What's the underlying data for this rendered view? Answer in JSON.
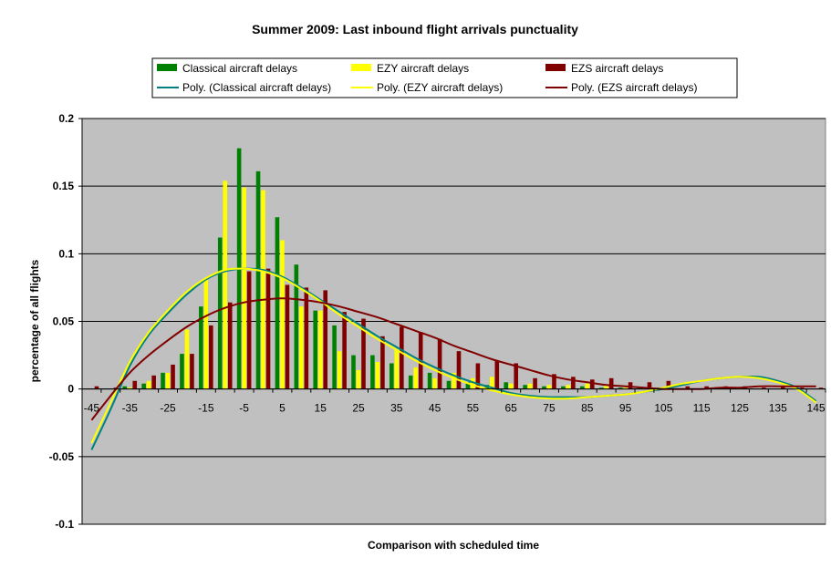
{
  "chart_data": {
    "type": "bar",
    "title": "Summer 2009: Last inbound flight arrivals punctuality",
    "xlabel": "Comparison with scheduled time",
    "ylabel": "percentage of all flights",
    "ylim": [
      -0.1,
      0.2
    ],
    "yticks": [
      "0.2",
      "0.15",
      "0.1",
      "0.05",
      "0",
      "-0.05",
      "-0.1"
    ],
    "ytick_values": [
      0.2,
      0.15,
      0.1,
      0.05,
      0,
      -0.05,
      -0.1
    ],
    "grid": true,
    "legend_position": "top",
    "plot_background": "#C0C0C0",
    "categories": [
      -45,
      -40,
      -35,
      -30,
      -25,
      -20,
      -15,
      -10,
      -5,
      0,
      5,
      10,
      15,
      20,
      25,
      30,
      35,
      40,
      45,
      50,
      55,
      60,
      65,
      70,
      75,
      80,
      85,
      90,
      95,
      100,
      105,
      110,
      115,
      120,
      125,
      130,
      135,
      140,
      145
    ],
    "tick_labels": [
      "-45",
      "-35",
      "-25",
      "-15",
      "-5",
      "5",
      "15",
      "25",
      "35",
      "45",
      "55",
      "65",
      "75",
      "85",
      "95",
      "105",
      "115",
      "125",
      "135",
      "145"
    ],
    "series": [
      {
        "name": "Classical aircraft delays",
        "color": "#008000",
        "values": [
          0,
          0,
          0.002,
          0.004,
          0.012,
          0.026,
          0.061,
          0.112,
          0.178,
          0.161,
          0.127,
          0.092,
          0.058,
          0.047,
          0.025,
          0.025,
          0.019,
          0.01,
          0.012,
          0.006,
          0.005,
          0.003,
          0.005,
          0.003,
          0.002,
          0.002,
          0.002,
          0.001,
          0.001,
          0.001,
          0.001,
          0,
          0,
          0,
          0,
          0,
          0,
          0,
          0
        ]
      },
      {
        "name": "EZY aircraft delays",
        "color": "#FFFF00",
        "values": [
          0,
          0,
          0.001,
          0.006,
          0.012,
          0.044,
          0.081,
          0.154,
          0.149,
          0.147,
          0.11,
          0.061,
          0.058,
          0.028,
          0.014,
          0.02,
          0.029,
          0.016,
          0.008,
          0.012,
          0.008,
          0.009,
          0.004,
          0.004,
          0.003,
          0.003,
          0.004,
          0.003,
          0.001,
          0.001,
          0.001,
          0,
          0,
          0,
          0.001,
          0,
          0,
          0,
          0
        ]
      },
      {
        "name": "EZS aircraft delays",
        "color": "#800000",
        "values": [
          0.002,
          0.001,
          0.006,
          0.01,
          0.018,
          0.026,
          0.047,
          0.064,
          0.087,
          0.089,
          0.077,
          0.075,
          0.073,
          0.057,
          0.052,
          0.039,
          0.046,
          0.042,
          0.037,
          0.028,
          0.019,
          0.021,
          0.019,
          0.008,
          0.011,
          0.009,
          0.007,
          0.008,
          0.005,
          0.005,
          0.006,
          0.002,
          0.002,
          0.002,
          0.002,
          0.001,
          0.002,
          0.001,
          0.001
        ]
      }
    ],
    "trendlines": [
      {
        "name": "Poly. (Classical aircraft delays)",
        "color": "#008080",
        "x": [
          -45,
          -40,
          -35,
          -30,
          -25,
          -20,
          -15,
          -10,
          -5,
          0,
          5,
          10,
          15,
          20,
          25,
          30,
          35,
          40,
          45,
          50,
          55,
          60,
          65,
          70,
          75,
          80,
          85,
          90,
          95,
          100,
          105,
          110,
          115,
          120,
          125,
          130,
          135,
          140,
          145
        ],
        "y": [
          -0.045,
          -0.015,
          0.017,
          0.04,
          0.056,
          0.07,
          0.081,
          0.087,
          0.089,
          0.088,
          0.083,
          0.075,
          0.066,
          0.057,
          0.048,
          0.039,
          0.031,
          0.023,
          0.016,
          0.01,
          0.005,
          0.001,
          -0.003,
          -0.005,
          -0.006,
          -0.006,
          -0.006,
          -0.005,
          -0.004,
          -0.002,
          0,
          0.003,
          0.006,
          0.008,
          0.009,
          0.009,
          0.006,
          0.001,
          -0.009
        ]
      },
      {
        "name": "Poly. (EZY aircraft delays)",
        "color": "#FFFF00",
        "x": [
          -45,
          -40,
          -35,
          -30,
          -25,
          -20,
          -15,
          -10,
          -5,
          0,
          5,
          10,
          15,
          20,
          25,
          30,
          35,
          40,
          45,
          50,
          55,
          60,
          65,
          70,
          75,
          80,
          85,
          90,
          95,
          100,
          105,
          110,
          115,
          120,
          125,
          130,
          135,
          140,
          145
        ],
        "y": [
          -0.04,
          -0.01,
          0.02,
          0.042,
          0.058,
          0.072,
          0.082,
          0.088,
          0.089,
          0.087,
          0.082,
          0.074,
          0.065,
          0.055,
          0.046,
          0.037,
          0.029,
          0.021,
          0.014,
          0.008,
          0.003,
          -0.001,
          -0.004,
          -0.006,
          -0.007,
          -0.007,
          -0.006,
          -0.005,
          -0.004,
          -0.002,
          0.001,
          0.004,
          0.006,
          0.008,
          0.009,
          0.008,
          0.005,
          0,
          -0.01
        ]
      },
      {
        "name": "Poly. (EZS aircraft delays)",
        "color": "#800000",
        "x": [
          -45,
          -40,
          -35,
          -30,
          -25,
          -20,
          -15,
          -10,
          -5,
          0,
          5,
          10,
          15,
          20,
          25,
          30,
          35,
          40,
          45,
          50,
          55,
          60,
          65,
          70,
          75,
          80,
          85,
          90,
          95,
          100,
          105,
          110,
          115,
          120,
          125,
          130,
          135,
          140,
          145
        ],
        "y": [
          -0.023,
          -0.005,
          0.012,
          0.025,
          0.036,
          0.046,
          0.054,
          0.06,
          0.064,
          0.066,
          0.067,
          0.066,
          0.064,
          0.061,
          0.057,
          0.053,
          0.048,
          0.043,
          0.038,
          0.032,
          0.027,
          0.022,
          0.018,
          0.014,
          0.01,
          0.007,
          0.005,
          0.003,
          0.002,
          0.001,
          0,
          0,
          0,
          0.001,
          0.001,
          0.002,
          0.002,
          0.002,
          0.002
        ]
      }
    ]
  }
}
